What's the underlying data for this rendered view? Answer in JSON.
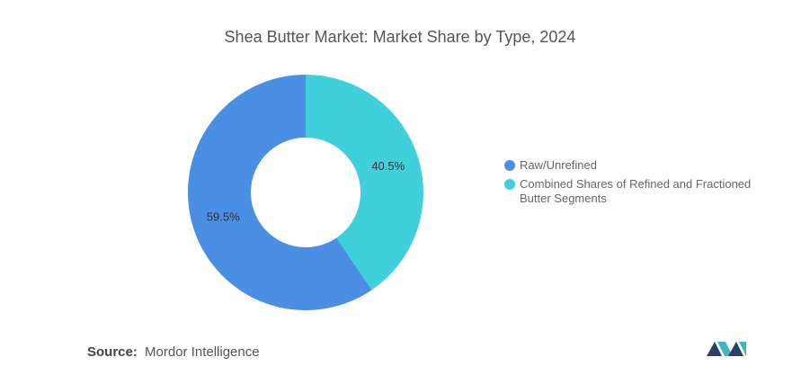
{
  "chart_data": {
    "type": "pie",
    "title": "Shea Butter Market: Market Share by Type, 2024",
    "categories": [
      "Combined Shares of Refined and Fractioned Butter Segments",
      "Raw/Unrefined"
    ],
    "values": [
      40.5,
      59.5
    ],
    "value_labels": [
      "40.5%",
      "59.5%"
    ],
    "colors": [
      "#40d0dc",
      "#4a8fe3"
    ],
    "legend_order": [
      1,
      0
    ],
    "legend": "right"
  },
  "source": {
    "label": "Source:",
    "text": "Mordor Intelligence"
  }
}
